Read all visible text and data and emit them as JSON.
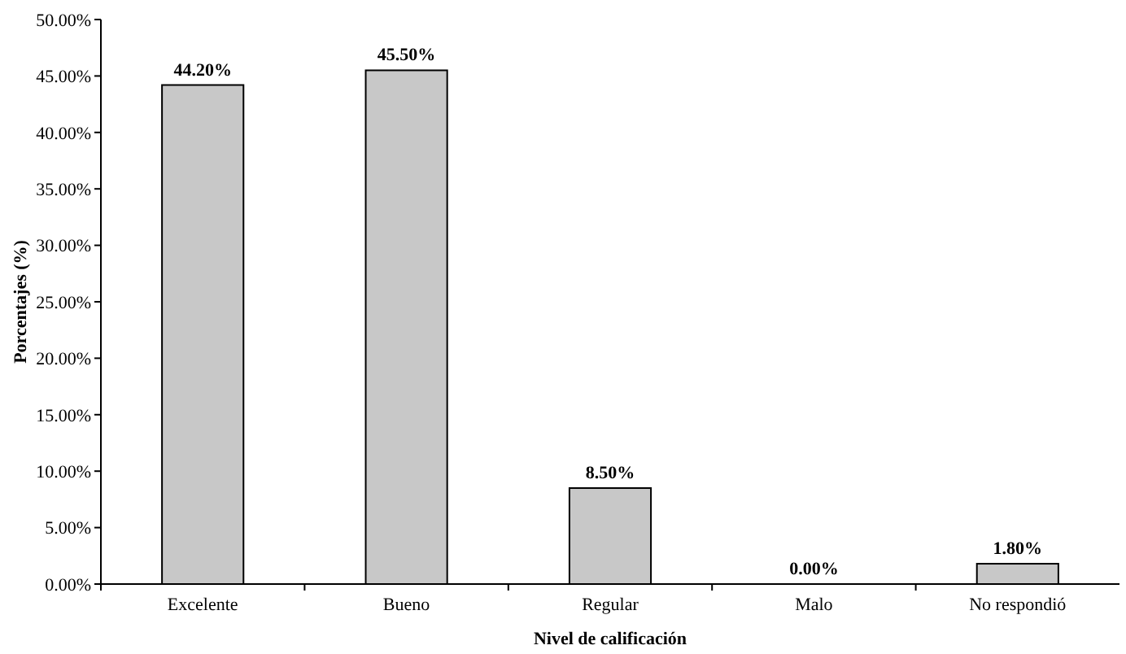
{
  "chart_data": {
    "type": "bar",
    "xlabel": "Nivel de calificación",
    "ylabel": "Porcentajes (%)",
    "categories": [
      "Excelente",
      "Bueno",
      "Regular",
      "Malo",
      "No respondió"
    ],
    "values": [
      44.2,
      45.5,
      8.5,
      0,
      1.8
    ],
    "value_labels": [
      "44.20%",
      "45.50%",
      "8.50%",
      "0.00%",
      "1.80%"
    ],
    "color": "#c8c8c8",
    "ylim": [
      0,
      50
    ],
    "yticks": [
      {
        "value": 0,
        "label": "0.00%"
      },
      {
        "value": 5,
        "label": "5.00%"
      },
      {
        "value": 10,
        "label": "10.00%"
      },
      {
        "value": 15,
        "label": "15.00%"
      },
      {
        "value": 20,
        "label": "20.00%"
      },
      {
        "value": 25,
        "label": "25.00%"
      },
      {
        "value": 30,
        "label": "30.00%"
      },
      {
        "value": 35,
        "label": "35.00%"
      },
      {
        "value": 40,
        "label": "40.00%"
      },
      {
        "value": 45,
        "label": "45.00%"
      },
      {
        "value": 50,
        "label": "50.00%"
      }
    ]
  }
}
